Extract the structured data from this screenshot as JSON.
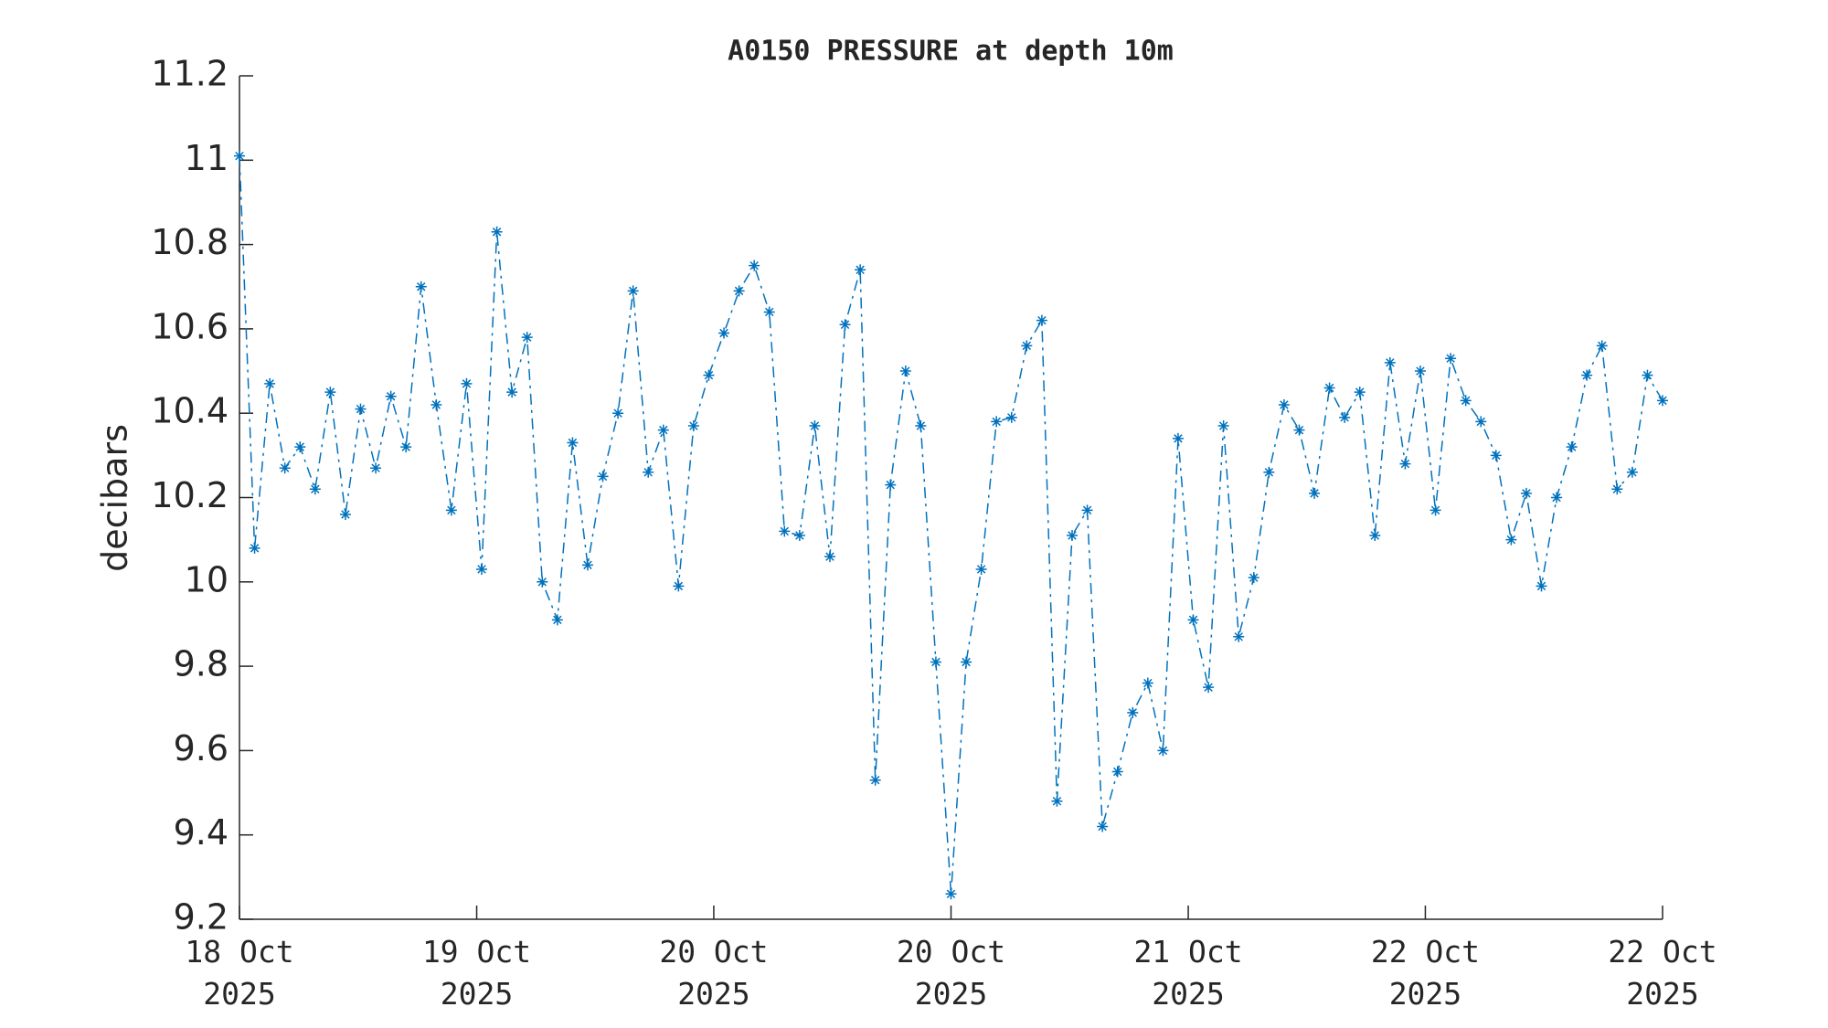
{
  "chart_data": {
    "type": "line",
    "title": "A0150 PRESSURE at depth 10m",
    "y_label": "decibars",
    "x": [
      0,
      1,
      2,
      3,
      4,
      5,
      6,
      7,
      8,
      9,
      10,
      11,
      12,
      13,
      14,
      15,
      16,
      17,
      18,
      19,
      20,
      21,
      22,
      23,
      24,
      25,
      26,
      27,
      28,
      29,
      30,
      31,
      32,
      33,
      34,
      35,
      36,
      37,
      38,
      39,
      40,
      41,
      42,
      43,
      44,
      45,
      46,
      47,
      48,
      49,
      50,
      51,
      52,
      53,
      54,
      55,
      56,
      57,
      58,
      59,
      60,
      61,
      62,
      63,
      64,
      65,
      66,
      67,
      68,
      69,
      70,
      71,
      72,
      73,
      74,
      75,
      76,
      77,
      78,
      79,
      80,
      81,
      82,
      83,
      84,
      85,
      86,
      87,
      88,
      89,
      90,
      91,
      92,
      93,
      94
    ],
    "series": [
      {
        "name": "A0150 PRESSURE",
        "color": "#0072bd",
        "values": [
          11.01,
          10.08,
          10.47,
          10.27,
          10.32,
          10.22,
          10.45,
          10.16,
          10.41,
          10.27,
          10.44,
          10.32,
          10.7,
          10.42,
          10.17,
          10.47,
          10.03,
          10.83,
          10.45,
          10.58,
          10.0,
          9.91,
          10.33,
          10.04,
          10.25,
          10.4,
          10.69,
          10.26,
          10.36,
          9.99,
          10.37,
          10.49,
          10.59,
          10.69,
          10.75,
          10.64,
          10.12,
          10.11,
          10.37,
          10.06,
          10.61,
          10.74,
          9.53,
          10.23,
          10.5,
          10.37,
          9.81,
          9.26,
          9.81,
          10.03,
          10.38,
          10.39,
          10.56,
          10.62,
          9.48,
          10.11,
          10.17,
          9.42,
          9.55,
          9.69,
          9.76,
          9.6,
          10.34,
          9.91,
          9.75,
          10.37,
          9.87,
          10.01,
          10.26,
          10.42,
          10.36,
          10.21,
          10.46,
          10.39,
          10.45,
          10.11,
          10.52,
          10.28,
          10.5,
          10.17,
          10.53,
          10.43,
          10.38,
          10.3,
          10.1,
          10.21,
          9.99,
          10.2,
          10.32,
          10.49,
          10.56,
          10.22,
          10.26,
          10.49,
          10.43
        ]
      }
    ],
    "xlim": [
      0,
      94
    ],
    "xticks": [
      {
        "value": 0,
        "label": "18 Oct 2025"
      },
      {
        "value": 15.67,
        "label": "19 Oct 2025"
      },
      {
        "value": 31.33,
        "label": "20 Oct 2025"
      },
      {
        "value": 47,
        "label": "20 Oct 2025"
      },
      {
        "value": 62.67,
        "label": "21 Oct 2025"
      },
      {
        "value": 78.33,
        "label": "22 Oct 2025"
      },
      {
        "value": 94,
        "label": "22 Oct 2025"
      }
    ],
    "ylim": [
      9.2,
      11.2
    ],
    "yticks": [
      9.2,
      9.4,
      9.6,
      9.8,
      10,
      10.2,
      10.4,
      10.6,
      10.8,
      11,
      11.2
    ],
    "grid": false,
    "line_style": "dashdot",
    "marker": "asterisk"
  }
}
